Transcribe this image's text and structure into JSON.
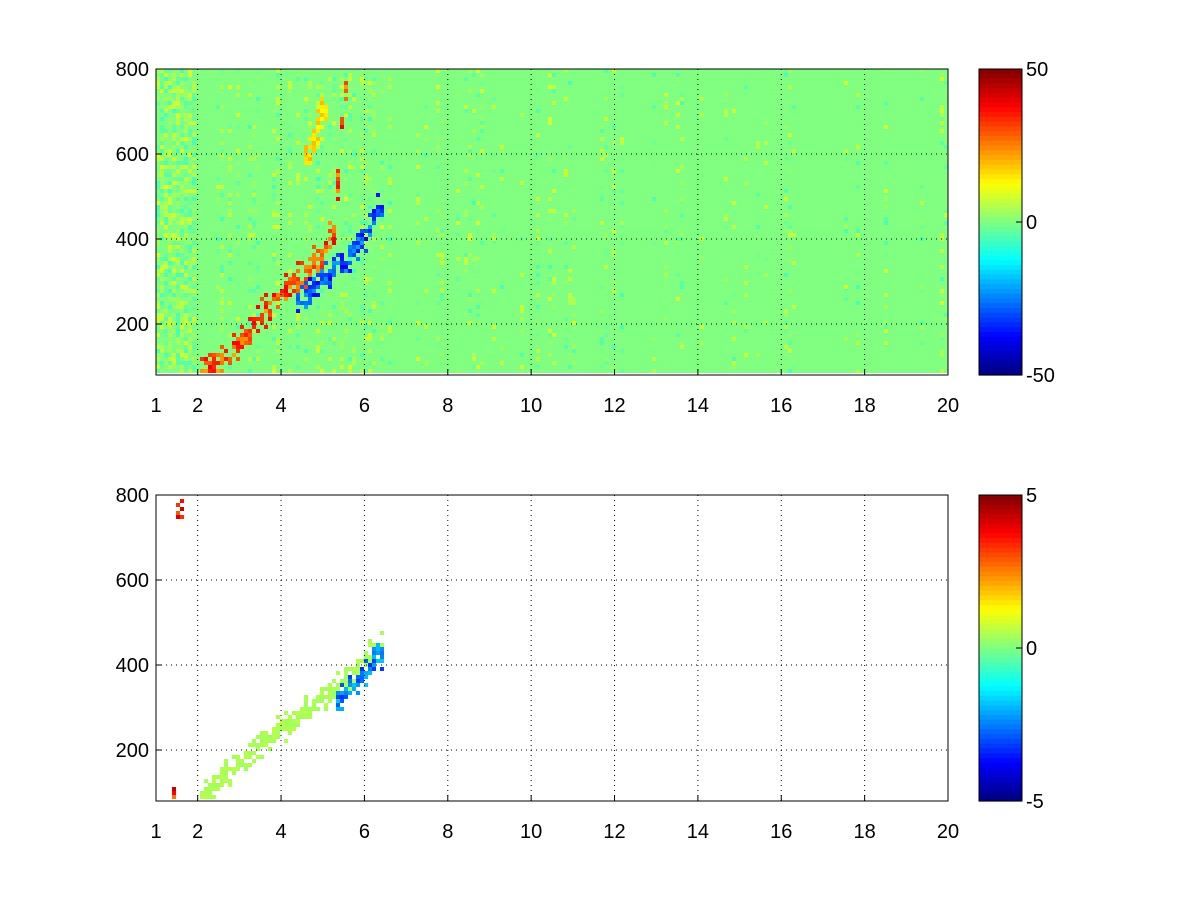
{
  "figure": {
    "background": "#ffffff"
  },
  "colormap": {
    "name": "jet",
    "stops": [
      "#00008f",
      "#0000ff",
      "#00ffff",
      "#ffff00",
      "#ff0000",
      "#800000"
    ]
  },
  "chart_data": [
    {
      "type": "heatmap",
      "title": "",
      "xlabel": "",
      "ylabel": "",
      "xlim": [
        1,
        20
      ],
      "ylim": [
        80,
        800
      ],
      "xticks": [
        "1",
        "2",
        "4",
        "6",
        "8",
        "10",
        "12",
        "14",
        "16",
        "18",
        "20"
      ],
      "xtick_values": [
        1,
        2,
        4,
        6,
        8,
        10,
        12,
        14,
        16,
        18,
        20
      ],
      "yticks": [
        "200",
        "400",
        "600",
        "800"
      ],
      "ytick_values": [
        200,
        400,
        600,
        800
      ],
      "grid": true,
      "colorbar": {
        "clim": [
          -50,
          50
        ],
        "ticks": [
          "50",
          "0",
          "-50"
        ],
        "tick_values": [
          50,
          0,
          -50
        ]
      },
      "features": [
        {
          "name": "positive ridge",
          "x": [
            2.2,
            3.0,
            3.5,
            4.0,
            4.5,
            5.0,
            5.3,
            5.5
          ],
          "y": [
            85,
            150,
            220,
            270,
            310,
            360,
            430,
            740
          ],
          "value": 35
        },
        {
          "name": "negative ridge",
          "x": [
            4.5,
            5.0,
            5.5,
            6.0,
            6.3
          ],
          "y": [
            260,
            300,
            340,
            400,
            470
          ],
          "value": -35
        },
        {
          "name": "upper lobe",
          "x": [
            4.7,
            5.0
          ],
          "y": [
            600,
            700
          ],
          "value": 18
        }
      ]
    },
    {
      "type": "heatmap",
      "title": "",
      "xlabel": "",
      "ylabel": "",
      "xlim": [
        1,
        20
      ],
      "ylim": [
        80,
        800
      ],
      "xticks": [
        "1",
        "2",
        "4",
        "6",
        "8",
        "10",
        "12",
        "14",
        "16",
        "18",
        "20"
      ],
      "xtick_values": [
        1,
        2,
        4,
        6,
        8,
        10,
        12,
        14,
        16,
        18,
        20
      ],
      "yticks": [
        "200",
        "400",
        "600",
        "800"
      ],
      "ytick_values": [
        200,
        400,
        600,
        800
      ],
      "grid": true,
      "colorbar": {
        "clim": [
          -5,
          5
        ],
        "ticks": [
          "5",
          "0",
          "-5"
        ],
        "tick_values": [
          5,
          0,
          -5
        ]
      },
      "features": [
        {
          "name": "main band",
          "x": [
            2.2,
            3.0,
            4.0,
            5.0,
            5.5,
            6.0,
            6.3
          ],
          "y": [
            90,
            170,
            250,
            320,
            360,
            400,
            450
          ],
          "value": 0.5
        },
        {
          "name": "negative streak",
          "x": [
            5.5,
            6.0,
            6.3
          ],
          "y": [
            330,
            380,
            420
          ],
          "value": -3
        },
        {
          "name": "vertical streak",
          "x": [
            1.5,
            1.5
          ],
          "y": [
            90,
            760
          ],
          "value": 4
        }
      ]
    }
  ]
}
